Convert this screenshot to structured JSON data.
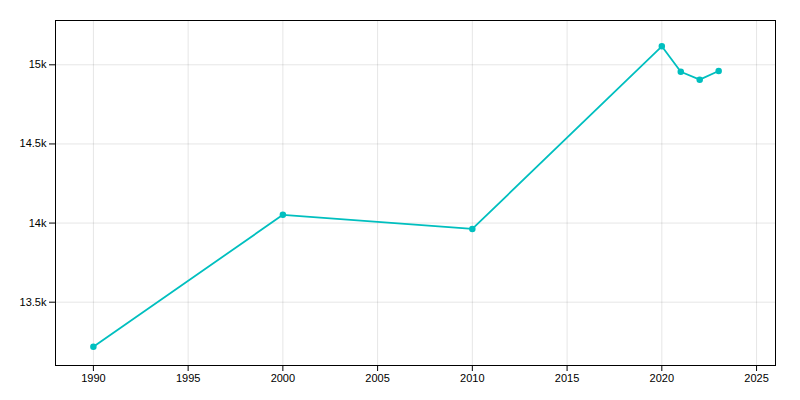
{
  "chart_data": {
    "type": "line",
    "x": [
      1990,
      2000,
      2010,
      2020,
      2021,
      2022,
      2023
    ],
    "values": [
      13218,
      14052,
      13963,
      15117,
      14956,
      14906,
      14961
    ],
    "color": "#00BFBF",
    "marker": "o",
    "xlim": [
      1988,
      2026
    ],
    "ylim": [
      13100,
      15280
    ],
    "xticks": [
      1990,
      1995,
      2000,
      2005,
      2010,
      2015,
      2020,
      2025
    ],
    "yticks": [
      {
        "value": 13500,
        "label": "13.5k"
      },
      {
        "value": 14000,
        "label": "14k"
      },
      {
        "value": 14500,
        "label": "14.5k"
      },
      {
        "value": 15000,
        "label": "15k"
      }
    ],
    "grid": true
  }
}
